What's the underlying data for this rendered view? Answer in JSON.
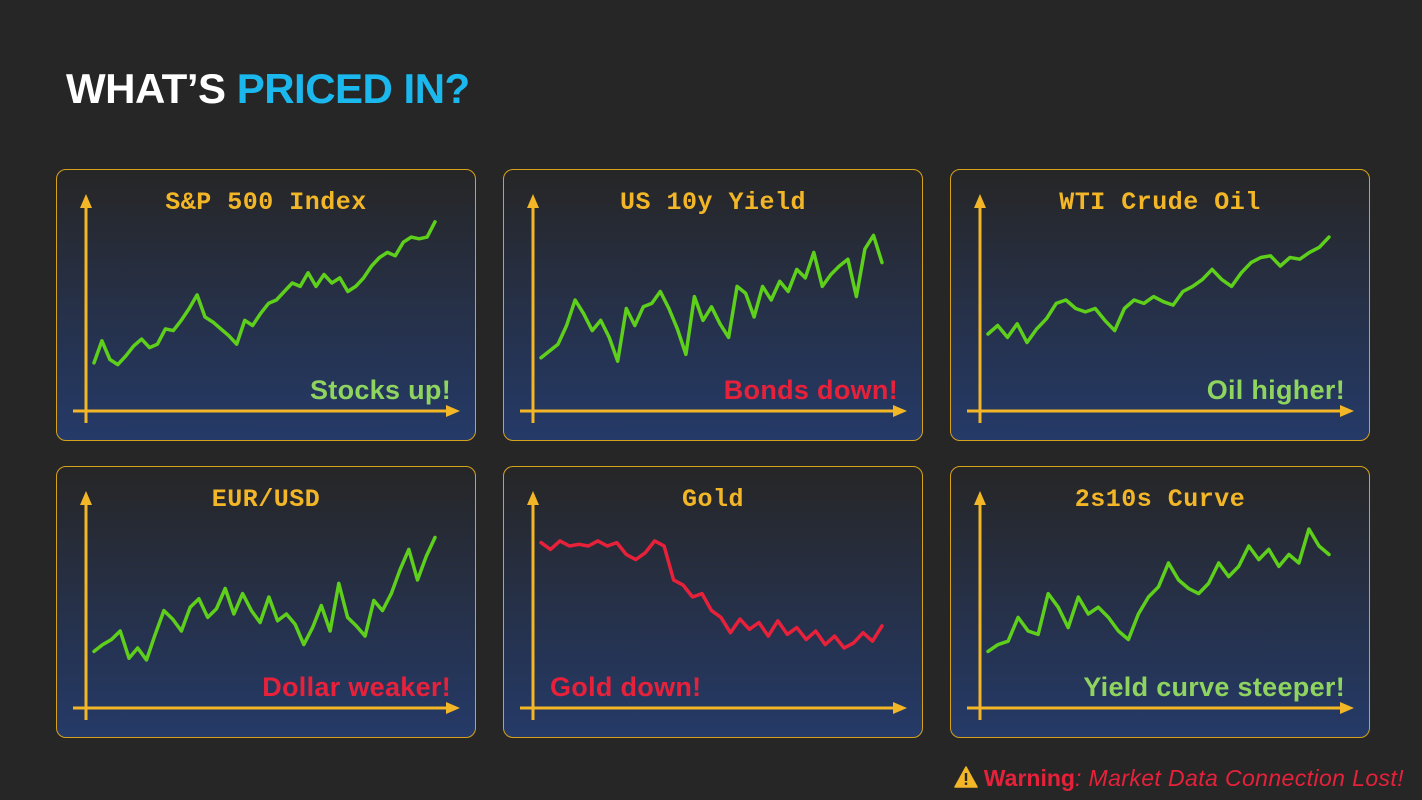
{
  "title": {
    "part1": "WHAT’S ",
    "part2": "PRICED IN?",
    "color1": "#ffffff",
    "color2": "#1bb8ee"
  },
  "colors": {
    "axis": "#f3b627",
    "up": "#5ecf1b",
    "down": "#e8213b",
    "caption_good": "#8fd45e",
    "caption_bad": "#e8213b",
    "panel_border": "#d6a21c"
  },
  "chart_data": [
    {
      "type": "line",
      "title": "S&P 500 Index",
      "caption": "Stocks up!",
      "caption_color": "#8fd45e",
      "line_color": "#5ecf1b",
      "caption_align": "right",
      "ylim": [
        0,
        100
      ],
      "series": [
        {
          "values": [
            13,
            26,
            15,
            12,
            17,
            23,
            27,
            22,
            24,
            33,
            32,
            38,
            45,
            53,
            40,
            37,
            33,
            29,
            24,
            38,
            35,
            42,
            48,
            50,
            55,
            60,
            58,
            66,
            58,
            65,
            60,
            63,
            55,
            58,
            63,
            70,
            75,
            78,
            76,
            84,
            87,
            86,
            87,
            96
          ]
        }
      ]
    },
    {
      "type": "line",
      "title": "US 10y Yield",
      "caption": "Bonds down!",
      "caption_color": "#e8213b",
      "line_color": "#5ecf1b",
      "caption_align": "right",
      "ylim": [
        0,
        100
      ],
      "series": [
        {
          "values": [
            16,
            20,
            24,
            35,
            50,
            42,
            32,
            38,
            28,
            14,
            45,
            35,
            46,
            48,
            55,
            45,
            33,
            18,
            52,
            38,
            46,
            36,
            28,
            58,
            54,
            40,
            58,
            50,
            61,
            55,
            68,
            63,
            78,
            58,
            65,
            70,
            74,
            52,
            80,
            88,
            72
          ]
        }
      ]
    },
    {
      "type": "line",
      "title": "WTI Crude Oil",
      "caption": "Oil higher!",
      "caption_color": "#8fd45e",
      "line_color": "#5ecf1b",
      "caption_align": "right",
      "ylim": [
        0,
        100
      ],
      "series": [
        {
          "values": [
            30,
            35,
            28,
            36,
            25,
            33,
            39,
            48,
            50,
            45,
            43,
            45,
            38,
            32,
            45,
            50,
            48,
            52,
            49,
            47,
            55,
            58,
            62,
            68,
            62,
            58,
            66,
            72,
            75,
            76,
            70,
            75,
            74,
            78,
            81,
            87
          ]
        }
      ]
    },
    {
      "type": "line",
      "title": "EUR/USD",
      "caption": "Dollar weaker!",
      "caption_color": "#e8213b",
      "line_color": "#5ecf1b",
      "caption_align": "right",
      "ylim": [
        0,
        100
      ],
      "series": [
        {
          "values": [
            18,
            22,
            25,
            30,
            14,
            20,
            13,
            28,
            42,
            37,
            30,
            44,
            49,
            38,
            43,
            55,
            40,
            52,
            42,
            35,
            50,
            36,
            40,
            34,
            22,
            32,
            45,
            30,
            58,
            38,
            33,
            27,
            48,
            42,
            52,
            66,
            78,
            60,
            74,
            85
          ]
        }
      ]
    },
    {
      "type": "line",
      "title": "Gold",
      "caption": "Gold down!",
      "caption_color": "#e8213b",
      "line_color": "#e8213b",
      "caption_align": "left",
      "ylim": [
        0,
        100
      ],
      "series": [
        {
          "values": [
            82,
            78,
            83,
            80,
            81,
            80,
            83,
            80,
            82,
            75,
            72,
            76,
            83,
            80,
            60,
            57,
            50,
            52,
            42,
            38,
            29,
            37,
            31,
            35,
            27,
            36,
            28,
            32,
            25,
            30,
            22,
            27,
            20,
            23,
            29,
            24,
            33
          ]
        }
      ]
    },
    {
      "type": "line",
      "title": "2s10s Curve",
      "caption": "Yield curve steeper!",
      "caption_color": "#8fd45e",
      "line_color": "#5ecf1b",
      "caption_align": "right",
      "ylim": [
        0,
        100
      ],
      "series": [
        {
          "values": [
            18,
            22,
            24,
            38,
            30,
            28,
            52,
            44,
            32,
            50,
            40,
            44,
            38,
            30,
            25,
            40,
            50,
            56,
            70,
            60,
            55,
            52,
            58,
            70,
            62,
            68,
            80,
            72,
            78,
            68,
            75,
            70,
            90,
            80,
            75
          ]
        }
      ]
    }
  ],
  "warning": {
    "icon": "warning-triangle-icon",
    "label": "Warning",
    "message": ": Market Data Connection Lost!"
  }
}
